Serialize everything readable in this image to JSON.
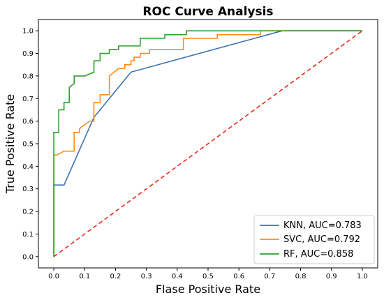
{
  "chart_data": {
    "type": "line",
    "title": "ROC Curve Analysis",
    "xlabel": "Flase Positive Rate",
    "ylabel": "True Positive Rate",
    "xlim": [
      -0.05,
      1.05
    ],
    "ylim": [
      -0.05,
      1.05
    ],
    "xticks": [
      "0.0",
      "0.1",
      "0.2",
      "0.3",
      "0.4",
      "0.5",
      "0.6",
      "0.7",
      "0.8",
      "0.9",
      "1.0"
    ],
    "yticks": [
      "0.0",
      "0.1",
      "0.2",
      "0.3",
      "0.4",
      "0.5",
      "0.6",
      "0.7",
      "0.8",
      "0.9",
      "1.0"
    ],
    "grid": false,
    "legend_position": "bottom-right",
    "series": [
      {
        "name": "KNN, AUC=0.783",
        "color": "#3a73b0",
        "x": [
          0,
          0,
          0.033,
          0.13,
          0.25,
          0.74,
          1.0
        ],
        "y": [
          0,
          0.317,
          0.317,
          0.617,
          0.817,
          1.0,
          1.0
        ]
      },
      {
        "name": "SVC, AUC=0.792",
        "color": "#ff8c1a",
        "x": [
          0,
          0,
          0.01,
          0.01,
          0.033,
          0.033,
          0.066,
          0.066,
          0.083,
          0.083,
          0.116,
          0.13,
          0.13,
          0.15,
          0.15,
          0.18,
          0.18,
          0.21,
          0.21,
          0.23,
          0.23,
          0.25,
          0.25,
          0.26,
          0.26,
          0.28,
          0.28,
          0.31,
          0.31,
          0.42,
          0.42,
          0.53,
          0.53,
          0.67,
          0.67,
          0.75,
          1.0
        ],
        "y": [
          0,
          0.45,
          0.45,
          0.45,
          0.467,
          0.467,
          0.467,
          0.55,
          0.55,
          0.567,
          0.6,
          0.6,
          0.683,
          0.683,
          0.717,
          0.717,
          0.8,
          0.833,
          0.833,
          0.833,
          0.85,
          0.85,
          0.867,
          0.867,
          0.883,
          0.883,
          0.9,
          0.9,
          0.917,
          0.917,
          0.967,
          0.967,
          0.983,
          0.983,
          1.0,
          1.0,
          1.0
        ]
      },
      {
        "name": "RF, AUC=0.858",
        "color": "#2ca02c",
        "x": [
          0,
          0,
          0.016,
          0.016,
          0.033,
          0.033,
          0.05,
          0.05,
          0.066,
          0.066,
          0.1,
          0.13,
          0.13,
          0.15,
          0.15,
          0.18,
          0.18,
          0.21,
          0.21,
          0.28,
          0.28,
          0.36,
          0.36,
          0.43,
          0.43,
          1.0
        ],
        "y": [
          0,
          0.55,
          0.55,
          0.65,
          0.65,
          0.683,
          0.683,
          0.75,
          0.767,
          0.8,
          0.8,
          0.817,
          0.867,
          0.867,
          0.9,
          0.9,
          0.917,
          0.917,
          0.933,
          0.933,
          0.967,
          0.967,
          0.983,
          0.983,
          1.0,
          1.0
        ]
      },
      {
        "color": "#e8291c",
        "style": "dashed",
        "x": [
          0,
          1
        ],
        "y": [
          0,
          1
        ]
      }
    ]
  }
}
